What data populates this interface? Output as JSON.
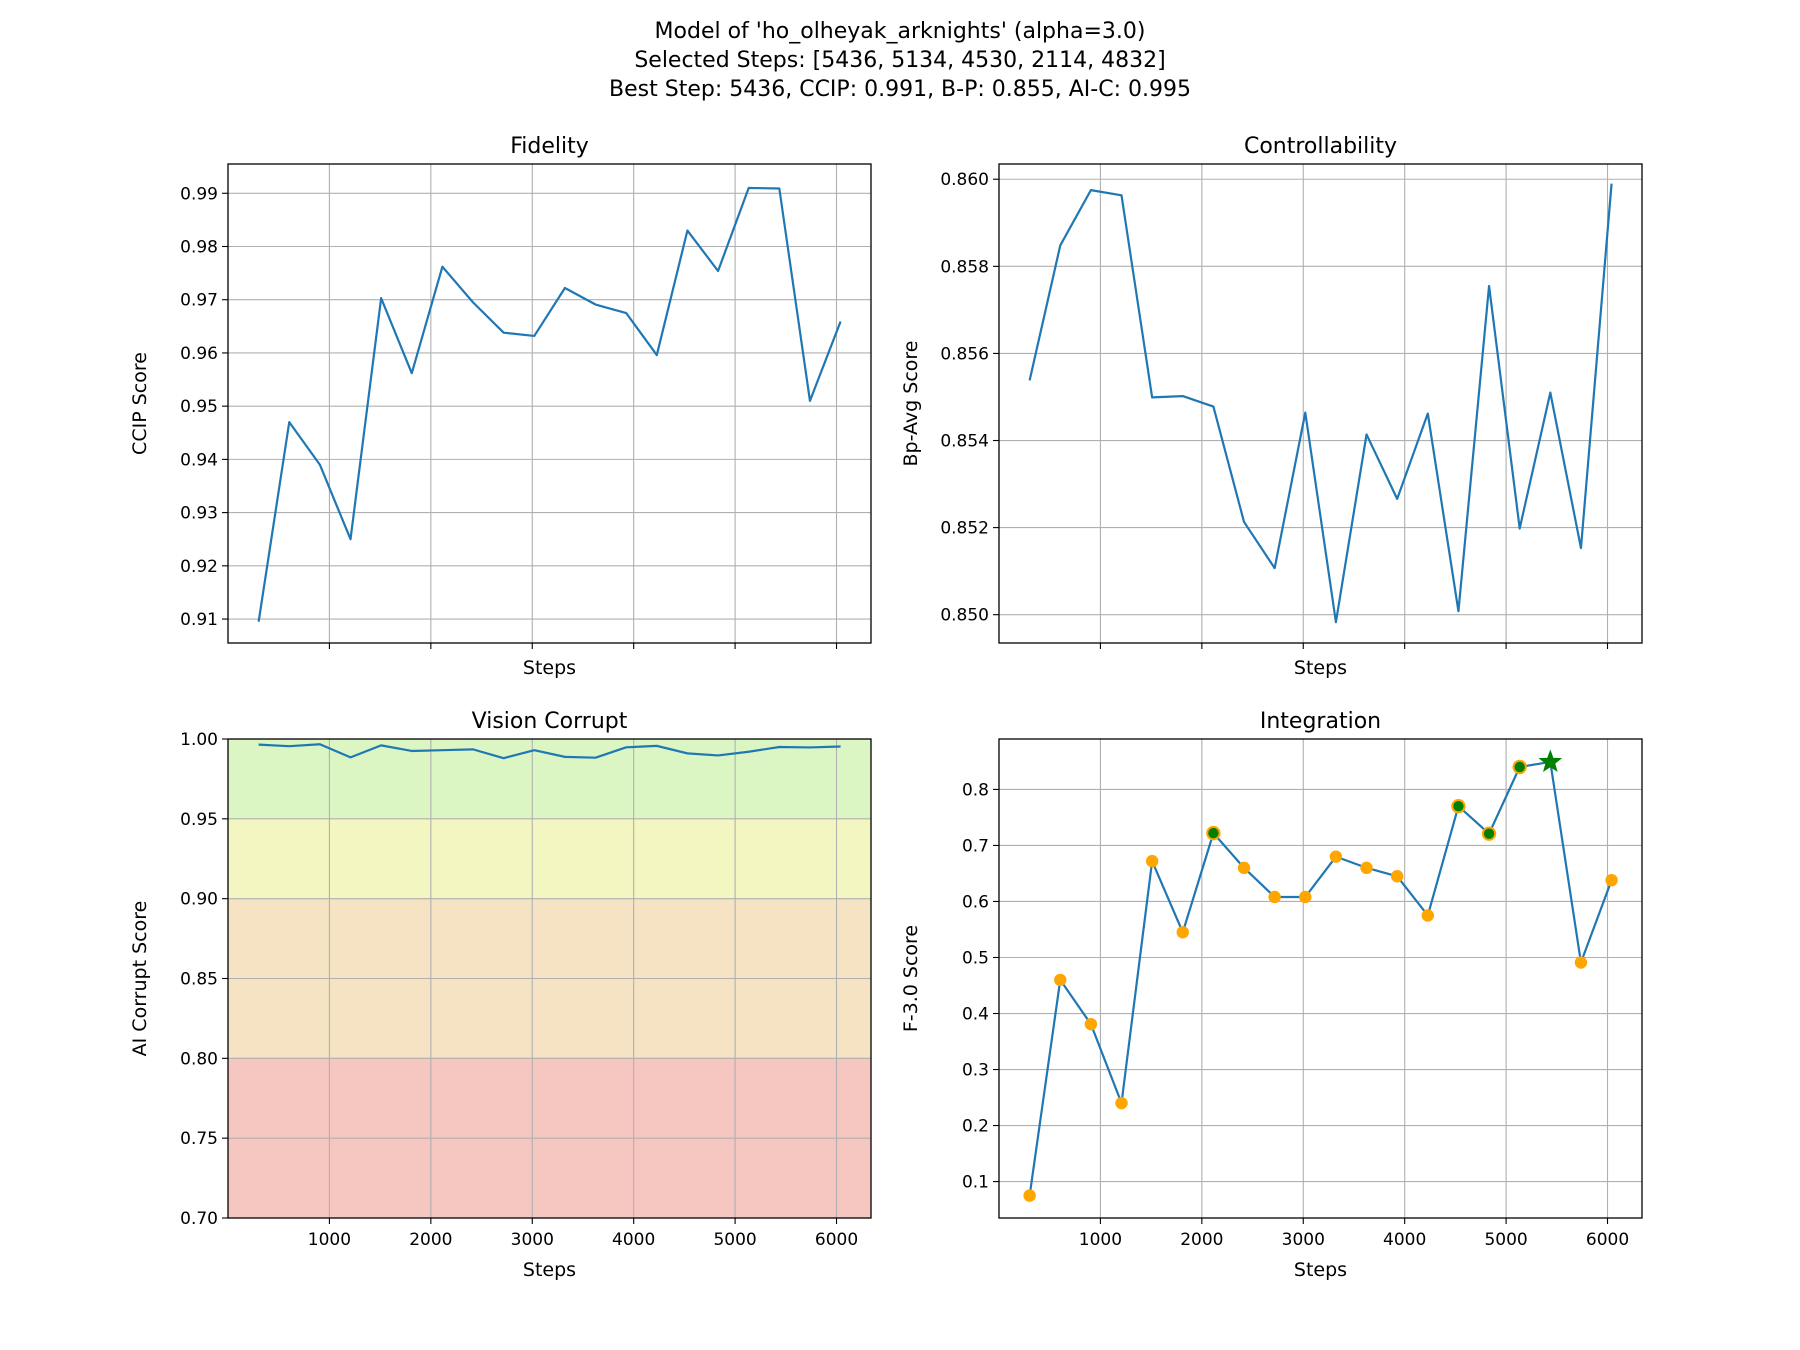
{
  "figure": {
    "title_lines": [
      "Model of 'ho_olheyak_arknights' (alpha=3.0)",
      "Selected Steps: [5436, 5134, 4530, 2114, 4832]",
      "Best Step: 5436, CCIP: 0.991, B-P: 0.855, AI-C: 0.995"
    ]
  },
  "chart_data": [
    {
      "id": "fidelity",
      "type": "line",
      "title": "Fidelity",
      "xlabel": "Steps",
      "ylabel": "CCIP Score",
      "xlim": [
        0,
        6340
      ],
      "ylim": [
        0.9055,
        0.9955
      ],
      "xticks": [
        1000,
        2000,
        3000,
        4000,
        5000,
        6000
      ],
      "xtick_labels_visible": false,
      "yticks": [
        0.91,
        0.92,
        0.93,
        0.94,
        0.95,
        0.96,
        0.97,
        0.98,
        0.99
      ],
      "ytick_labels": [
        "0.91",
        "0.92",
        "0.93",
        "0.94",
        "0.95",
        "0.96",
        "0.97",
        "0.98",
        "0.99"
      ],
      "grid": true,
      "color": "#1f77b4",
      "x": [
        302,
        604,
        906,
        1208,
        1510,
        1812,
        2114,
        2416,
        2718,
        3020,
        3322,
        3624,
        3926,
        4228,
        4530,
        4832,
        5134,
        5436,
        5738,
        6040
      ],
      "y": [
        0.9095,
        0.947,
        0.939,
        0.925,
        0.9703,
        0.9562,
        0.9762,
        0.9695,
        0.9638,
        0.9632,
        0.9722,
        0.9691,
        0.9675,
        0.9596,
        0.983,
        0.9754,
        0.991,
        0.9909,
        0.951,
        0.9659
      ]
    },
    {
      "id": "controllability",
      "type": "line",
      "title": "Controllability",
      "xlabel": "Steps",
      "ylabel": "Bp-Avg Score",
      "xlim": [
        0,
        6340
      ],
      "ylim": [
        0.84935,
        0.86035
      ],
      "xticks": [
        1000,
        2000,
        3000,
        4000,
        5000,
        6000
      ],
      "xtick_labels_visible": false,
      "yticks": [
        0.85,
        0.852,
        0.854,
        0.856,
        0.858,
        0.86
      ],
      "ytick_labels": [
        "0.850",
        "0.852",
        "0.854",
        "0.856",
        "0.858",
        "0.860"
      ],
      "grid": true,
      "color": "#1f77b4",
      "x": [
        302,
        604,
        906,
        1208,
        1510,
        1812,
        2114,
        2416,
        2718,
        3020,
        3322,
        3624,
        3926,
        4228,
        4530,
        4832,
        5134,
        5436,
        5738,
        6040
      ],
      "y": [
        0.85538,
        0.85848,
        0.85975,
        0.85963,
        0.85499,
        0.85502,
        0.85478,
        0.85213,
        0.85107,
        0.85464,
        0.84983,
        0.85414,
        0.85266,
        0.85462,
        0.85008,
        0.85755,
        0.85198,
        0.8551,
        0.85153,
        0.8599
      ]
    },
    {
      "id": "vision-corrupt",
      "type": "line",
      "title": "Vision Corrupt",
      "xlabel": "Steps",
      "ylabel": "AI Corrupt Score",
      "xlim": [
        0,
        6340
      ],
      "ylim": [
        0.7,
        1.0
      ],
      "xticks": [
        1000,
        2000,
        3000,
        4000,
        5000,
        6000
      ],
      "xtick_labels": [
        "1000",
        "2000",
        "3000",
        "4000",
        "5000",
        "6000"
      ],
      "yticks": [
        0.7,
        0.75,
        0.8,
        0.85,
        0.9,
        0.95,
        1.0
      ],
      "ytick_labels": [
        "0.70",
        "0.75",
        "0.80",
        "0.85",
        "0.90",
        "0.95",
        "1.00"
      ],
      "grid": true,
      "color": "#1f77b4",
      "bands": [
        {
          "from": 0.7,
          "to": 0.8,
          "color": "#f6c6c1"
        },
        {
          "from": 0.8,
          "to": 0.9,
          "color": "#f6e3c3"
        },
        {
          "from": 0.9,
          "to": 0.95,
          "color": "#f3f6c1"
        },
        {
          "from": 0.95,
          "to": 1.0,
          "color": "#dbf6c3"
        }
      ],
      "x": [
        302,
        604,
        906,
        1208,
        1510,
        1812,
        2114,
        2416,
        2718,
        3020,
        3322,
        3624,
        3926,
        4228,
        4530,
        4832,
        5134,
        5436,
        5738,
        6040
      ],
      "y": [
        0.9965,
        0.9955,
        0.9967,
        0.9885,
        0.996,
        0.9925,
        0.993,
        0.9935,
        0.988,
        0.993,
        0.9888,
        0.9883,
        0.9948,
        0.9957,
        0.991,
        0.9897,
        0.992,
        0.995,
        0.9947,
        0.9953
      ]
    },
    {
      "id": "integration",
      "type": "scatter",
      "title": "Integration",
      "xlabel": "Steps",
      "ylabel": "F-3.0 Score",
      "xlim": [
        0,
        6340
      ],
      "ylim": [
        0.035,
        0.89
      ],
      "xticks": [
        1000,
        2000,
        3000,
        4000,
        5000,
        6000
      ],
      "xtick_labels": [
        "1000",
        "2000",
        "3000",
        "4000",
        "5000",
        "6000"
      ],
      "yticks": [
        0.1,
        0.2,
        0.3,
        0.4,
        0.5,
        0.6,
        0.7,
        0.8
      ],
      "ytick_labels": [
        "0.1",
        "0.2",
        "0.3",
        "0.4",
        "0.5",
        "0.6",
        "0.7",
        "0.8"
      ],
      "grid": true,
      "line_color": "#1f77b4",
      "point_color": "#ffa500",
      "selected_color": "#008000",
      "best_step": 5436,
      "selected_steps": [
        5436,
        5134,
        4530,
        2114,
        4832
      ],
      "x": [
        302,
        604,
        906,
        1208,
        1510,
        1812,
        2114,
        2416,
        2718,
        3020,
        3322,
        3624,
        3926,
        4228,
        4530,
        4832,
        5134,
        5436,
        5738,
        6040
      ],
      "y": [
        0.075,
        0.46,
        0.381,
        0.24,
        0.672,
        0.545,
        0.722,
        0.66,
        0.608,
        0.608,
        0.68,
        0.66,
        0.645,
        0.575,
        0.77,
        0.721,
        0.84,
        0.849,
        0.491,
        0.638
      ]
    }
  ]
}
